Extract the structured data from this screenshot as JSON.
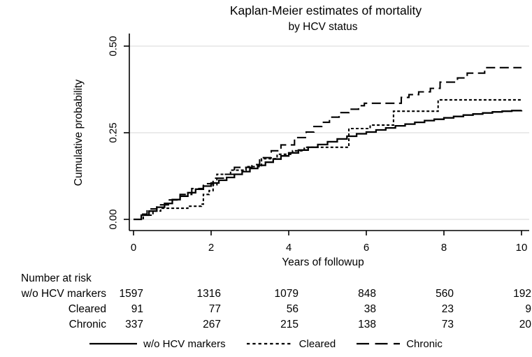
{
  "figure": {
    "background": "#ffffff",
    "line_color": "#000000",
    "grid_color": "#dfdfdf"
  },
  "chart_data": {
    "type": "line",
    "style": "kaplan-meier-step",
    "title": "Kaplan-Meier estimates of mortality",
    "subtitle": "by HCV status",
    "xlabel": "Years of followup",
    "ylabel": "Cumulative probability",
    "xlim": [
      0,
      10
    ],
    "ylim": [
      0,
      0.5
    ],
    "xticks": [
      0,
      2,
      4,
      6,
      8,
      10
    ],
    "yticks": [
      {
        "value": 0,
        "label": "0.00"
      },
      {
        "value": 0.25,
        "label": "0.25"
      },
      {
        "value": 0.5,
        "label": "0.50"
      }
    ],
    "grid": "horizontal",
    "legend_position": "bottom",
    "series": [
      {
        "name": "w/o HCV markers",
        "style": "solid",
        "points": [
          [
            0,
            0
          ],
          [
            0.2,
            0.012
          ],
          [
            0.4,
            0.024
          ],
          [
            0.6,
            0.035
          ],
          [
            0.8,
            0.046
          ],
          [
            1,
            0.057
          ],
          [
            1.2,
            0.067
          ],
          [
            1.4,
            0.077
          ],
          [
            1.6,
            0.087
          ],
          [
            1.8,
            0.096
          ],
          [
            2,
            0.105
          ],
          [
            2.2,
            0.113
          ],
          [
            2.4,
            0.121
          ],
          [
            2.6,
            0.13
          ],
          [
            2.8,
            0.138
          ],
          [
            3,
            0.147
          ],
          [
            3.2,
            0.156
          ],
          [
            3.4,
            0.165
          ],
          [
            3.6,
            0.174
          ],
          [
            3.8,
            0.183
          ],
          [
            4,
            0.192
          ],
          [
            4.25,
            0.2
          ],
          [
            4.5,
            0.208
          ],
          [
            4.75,
            0.216
          ],
          [
            5,
            0.224
          ],
          [
            5.25,
            0.232
          ],
          [
            5.5,
            0.24
          ],
          [
            5.75,
            0.247
          ],
          [
            6,
            0.252
          ],
          [
            6.25,
            0.258
          ],
          [
            6.5,
            0.264
          ],
          [
            6.75,
            0.27
          ],
          [
            7,
            0.275
          ],
          [
            7.25,
            0.28
          ],
          [
            7.5,
            0.285
          ],
          [
            7.75,
            0.289
          ],
          [
            8,
            0.293
          ],
          [
            8.25,
            0.297
          ],
          [
            8.5,
            0.301
          ],
          [
            8.75,
            0.304
          ],
          [
            9,
            0.307
          ],
          [
            9.25,
            0.31
          ],
          [
            9.5,
            0.312
          ],
          [
            9.75,
            0.314
          ],
          [
            10,
            0.315
          ]
        ]
      },
      {
        "name": "Cleared",
        "style": "short-dash",
        "points": [
          [
            0,
            0
          ],
          [
            0.25,
            0.012
          ],
          [
            0.5,
            0.024
          ],
          [
            0.7,
            0.032
          ],
          [
            1.4,
            0.038
          ],
          [
            1.75,
            0.044
          ],
          [
            1.8,
            0.072
          ],
          [
            1.95,
            0.083
          ],
          [
            2.05,
            0.1
          ],
          [
            2.15,
            0.13
          ],
          [
            2.5,
            0.142
          ],
          [
            2.9,
            0.152
          ],
          [
            3.3,
            0.175
          ],
          [
            3.7,
            0.188
          ],
          [
            4.1,
            0.198
          ],
          [
            4.4,
            0.208
          ],
          [
            5.55,
            0.262
          ],
          [
            6.1,
            0.272
          ],
          [
            6.7,
            0.312
          ],
          [
            7.85,
            0.345
          ],
          [
            10,
            0.345
          ]
        ]
      },
      {
        "name": "Chronic",
        "style": "long-dash",
        "points": [
          [
            0,
            0
          ],
          [
            0.2,
            0.015
          ],
          [
            0.35,
            0.03
          ],
          [
            0.6,
            0.042
          ],
          [
            0.9,
            0.056
          ],
          [
            1.2,
            0.072
          ],
          [
            1.5,
            0.089
          ],
          [
            1.8,
            0.103
          ],
          [
            2.05,
            0.119
          ],
          [
            2.35,
            0.13
          ],
          [
            2.6,
            0.15
          ],
          [
            3.05,
            0.158
          ],
          [
            3.25,
            0.178
          ],
          [
            3.55,
            0.198
          ],
          [
            3.8,
            0.215
          ],
          [
            4.15,
            0.236
          ],
          [
            4.45,
            0.252
          ],
          [
            4.65,
            0.268
          ],
          [
            4.85,
            0.28
          ],
          [
            5.05,
            0.295
          ],
          [
            5.3,
            0.308
          ],
          [
            5.55,
            0.318
          ],
          [
            5.8,
            0.328
          ],
          [
            5.95,
            0.335
          ],
          [
            6.9,
            0.352
          ],
          [
            7.1,
            0.36
          ],
          [
            7.35,
            0.368
          ],
          [
            7.65,
            0.378
          ],
          [
            7.9,
            0.396
          ],
          [
            8.35,
            0.408
          ],
          [
            8.6,
            0.422
          ],
          [
            9.05,
            0.438
          ],
          [
            10,
            0.438
          ]
        ]
      }
    ]
  },
  "risk_table": {
    "header": "Number at risk",
    "columns": [
      0,
      2,
      4,
      6,
      8,
      10
    ],
    "rows": [
      {
        "label": "w/o HCV markers",
        "values": [
          "1597",
          "1316",
          "1079",
          "848",
          "560",
          "192"
        ]
      },
      {
        "label": "Cleared",
        "values": [
          "91",
          "77",
          "56",
          "38",
          "23",
          "9"
        ]
      },
      {
        "label": "Chronic",
        "values": [
          "337",
          "267",
          "215",
          "138",
          "73",
          "20"
        ]
      }
    ]
  },
  "legend": {
    "items": [
      {
        "label": "w/o HCV markers",
        "style": "solid"
      },
      {
        "label": "Cleared",
        "style": "short-dash"
      },
      {
        "label": "Chronic",
        "style": "long-dash"
      }
    ]
  }
}
